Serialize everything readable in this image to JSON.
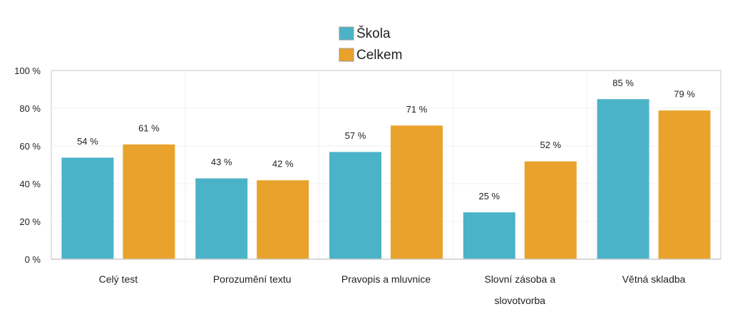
{
  "chart_data": {
    "type": "bar",
    "categories": [
      "Celý test",
      "Porozumění textu",
      "Pravopis a mluvnice",
      "Slovní zásoba a slovotvorba",
      "Větná skladba"
    ],
    "category_lines": [
      [
        "Celý test"
      ],
      [
        "Porozumění textu"
      ],
      [
        "Pravopis a mluvnice"
      ],
      [
        "Slovní zásoba a",
        "slovotvorba"
      ],
      [
        "Větná skladba"
      ]
    ],
    "series": [
      {
        "name": "Škola",
        "color": "#4bb3c7",
        "values": [
          54,
          43,
          57,
          25,
          85
        ],
        "labels": [
          "54 %",
          "43 %",
          "57 %",
          "25 %",
          "85 %"
        ]
      },
      {
        "name": "Celkem",
        "color": "#e9a22b",
        "values": [
          61,
          42,
          71,
          52,
          79
        ],
        "labels": [
          "61 %",
          "42 %",
          "71 %",
          "52 %",
          "79 %"
        ]
      }
    ],
    "ylim": [
      0,
      100
    ],
    "yticks": [
      0,
      20,
      40,
      60,
      80,
      100
    ],
    "ytick_labels": [
      "0 %",
      "20 %",
      "40 %",
      "60 %",
      "80 %",
      "100 %"
    ],
    "legend_position": "top-center",
    "grid": true,
    "title": "",
    "xlabel": "",
    "ylabel": ""
  }
}
